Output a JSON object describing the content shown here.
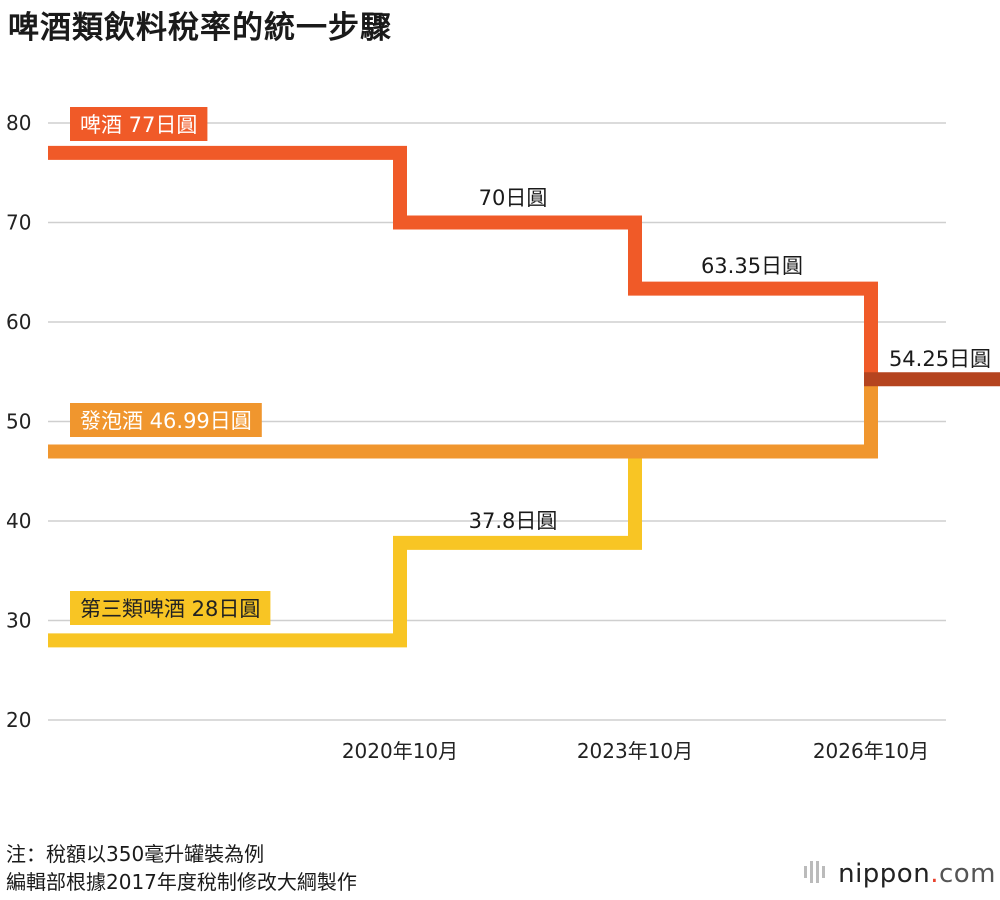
{
  "chart_title": "啤酒類飲料稅率的統一步驟",
  "chart_data": {
    "type": "line",
    "title": "啤酒類飲料稅率的統一步驟",
    "ylim": [
      20,
      80
    ],
    "y_ticks": [
      20,
      30,
      40,
      50,
      60,
      70,
      80
    ],
    "x_ticks": [
      "2020年10月",
      "2023年10月",
      "2026年10月"
    ],
    "grid": true,
    "series": [
      {
        "name": "啤酒",
        "color": "#f05a28",
        "periods": [
          "",
          "2020年10月",
          "2023年10月",
          "2026年10月"
        ],
        "values": [
          77,
          70,
          63.35,
          54.25
        ],
        "labels": [
          "啤酒 77日圓",
          "70日圓",
          "63.35日圓",
          "54.25日圓"
        ]
      },
      {
        "name": "發泡酒",
        "color": "#f0962e",
        "periods": [
          "",
          "2026年10月"
        ],
        "values": [
          46.99,
          54.25
        ],
        "labels": [
          "發泡酒 46.99日圓"
        ]
      },
      {
        "name": "第三類啤酒",
        "color": "#f8c524",
        "periods": [
          "",
          "2020年10月",
          "2023年10月",
          "2026年10月"
        ],
        "values": [
          28,
          37.8,
          46.99,
          54.25
        ],
        "labels": [
          "第三類啤酒 28日圓",
          "37.8日圓"
        ]
      }
    ],
    "unified_color": "#b5441f"
  },
  "notes": {
    "line1": "注：稅額以350毫升罐裝為例",
    "line2": "編輯部根據2017年度稅制修改大綱製作"
  },
  "brand": {
    "name": "nippon",
    "dot": ".",
    "suffix": "com"
  }
}
